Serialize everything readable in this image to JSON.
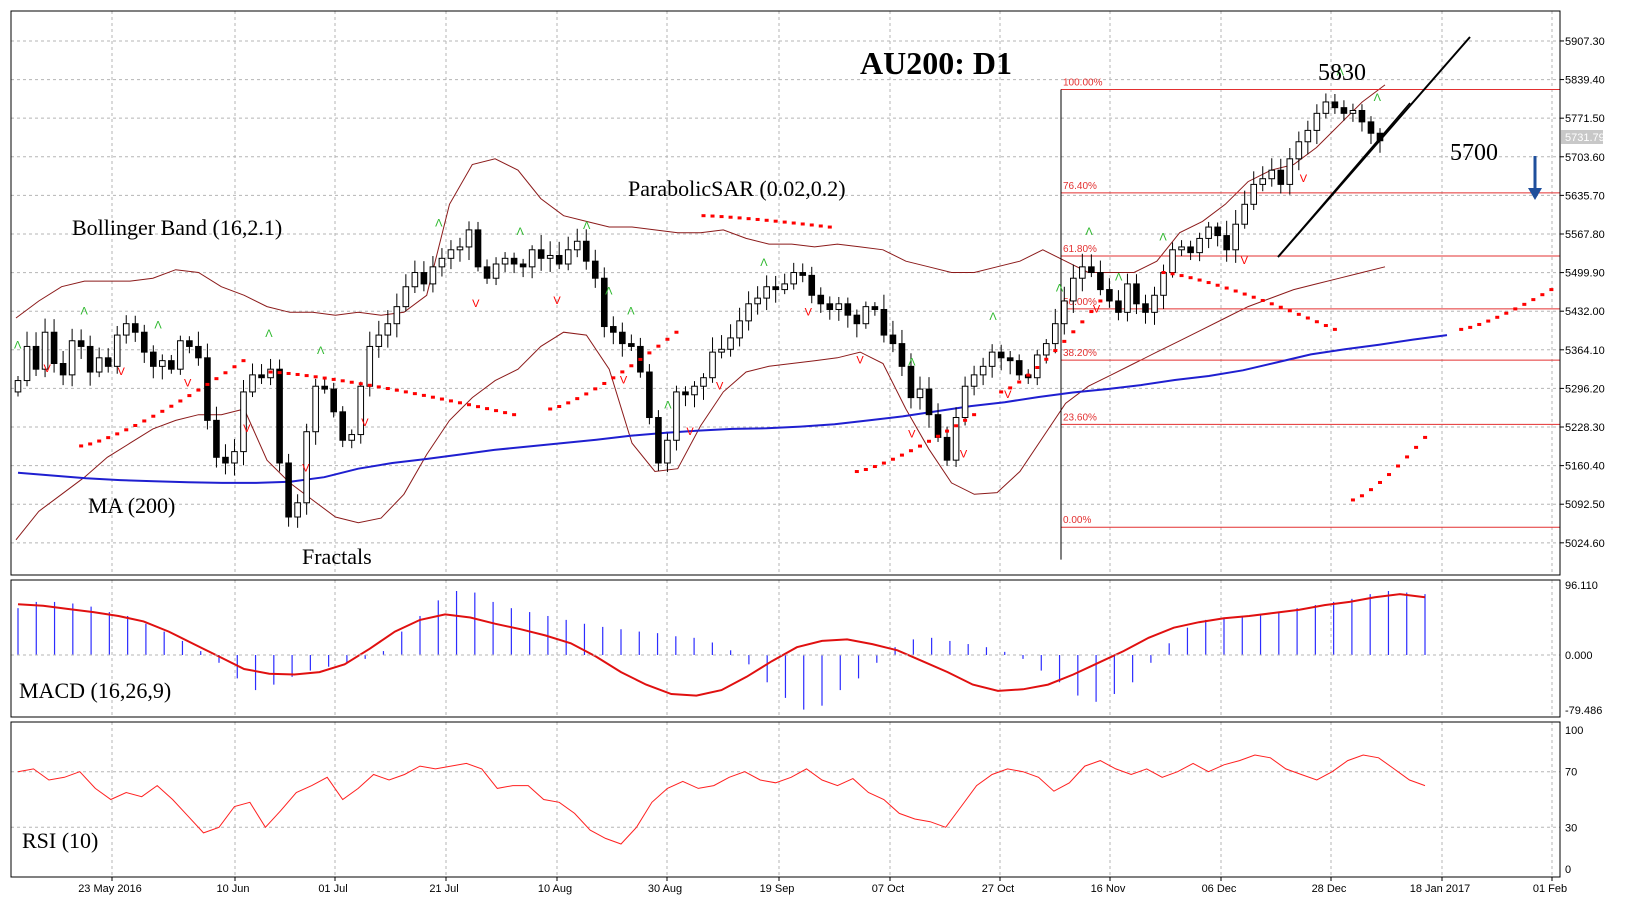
{
  "colors": {
    "background": "#ffffff",
    "grid": "#b5b5b5",
    "frame": "#000000",
    "bollinger": "#8b1a1a",
    "ma": "#1f1fd0",
    "sar": "#ff0000",
    "fractal_up": "#2db82d",
    "fractal_down": "#ff0000",
    "fib": "#e33030",
    "macd_hist": "#2c2cff",
    "macd_signal": "#e01010",
    "rsi": "#ff2020",
    "trend": "#000000",
    "arrow": "#1f4f9c"
  },
  "chart_data": [
    {
      "type": "candlestick",
      "title": "AU200: D1",
      "y_ticks": [
        "5907.30",
        "5839.40",
        "5771.50",
        "5703.60",
        "5635.70",
        "5567.80",
        "5499.90",
        "5432.00",
        "5364.10",
        "5296.20",
        "5228.30",
        "5160.40",
        "5092.50",
        "5024.60"
      ],
      "ylim": [
        4968,
        5960
      ],
      "current_price": "5731.79",
      "x_ticks": [
        "23 May 2016",
        "10 Jun",
        "01 Jul",
        "21 Jul",
        "10 Aug",
        "30 Aug",
        "19 Sep",
        "07 Oct",
        "27 Oct",
        "16 Nov",
        "06 Dec",
        "28 Dec",
        "18 Jan 2017",
        "01 Feb"
      ],
      "indicator_labels": {
        "bollinger": "Bollinger Band (16,2.1)",
        "sar": "ParabolicSAR (0.02,0.2)",
        "ma": "MA (200)",
        "fractals": "Fractals"
      },
      "annotations": {
        "high": "5830",
        "target": "5700"
      },
      "fibonacci": [
        {
          "label": "100.00%",
          "price": 5822
        },
        {
          "label": "76.40%",
          "price": 5640
        },
        {
          "label": "61.80%",
          "price": 5529
        },
        {
          "label": "50.00%",
          "price": 5436
        },
        {
          "label": "38.20%",
          "price": 5346
        },
        {
          "label": "23.60%",
          "price": 5233
        },
        {
          "label": "0.00%",
          "price": 5052
        }
      ],
      "closes": [
        5310,
        5370,
        5330,
        5395,
        5340,
        5320,
        5380,
        5370,
        5325,
        5350,
        5335,
        5390,
        5410,
        5395,
        5360,
        5335,
        5345,
        5330,
        5380,
        5370,
        5350,
        5240,
        5175,
        5165,
        5185,
        5290,
        5320,
        5315,
        5330,
        5165,
        5070,
        5095,
        5220,
        5300,
        5295,
        5255,
        5205,
        5215,
        5300,
        5370,
        5390,
        5410,
        5440,
        5475,
        5500,
        5480,
        5510,
        5525,
        5540,
        5545,
        5575,
        5510,
        5490,
        5515,
        5525,
        5515,
        5510,
        5540,
        5525,
        5530,
        5515,
        5540,
        5555,
        5520,
        5490,
        5405,
        5395,
        5375,
        5370,
        5325,
        5245,
        5165,
        5205,
        5290,
        5285,
        5300,
        5315,
        5360,
        5365,
        5385,
        5415,
        5445,
        5455,
        5475,
        5470,
        5480,
        5500,
        5495,
        5460,
        5445,
        5435,
        5445,
        5425,
        5410,
        5440,
        5435,
        5390,
        5375,
        5335,
        5280,
        5295,
        5250,
        5210,
        5170,
        5245,
        5300,
        5320,
        5335,
        5360,
        5350,
        5345,
        5320,
        5315,
        5355,
        5375,
        5410,
        5450,
        5490,
        5510,
        5500,
        5470,
        5450,
        5430,
        5480,
        5445,
        5430,
        5460,
        5500,
        5540,
        5545,
        5535,
        5560,
        5580,
        5565,
        5540,
        5585,
        5620,
        5655,
        5665,
        5680,
        5655,
        5700,
        5730,
        5750,
        5780,
        5800,
        5790,
        5780,
        5785,
        5765,
        5745,
        5731.79
      ],
      "bollinger_upper": [
        5420,
        5450,
        5475,
        5485,
        5485,
        5485,
        5490,
        5505,
        5500,
        5475,
        5460,
        5440,
        5430,
        5430,
        5425,
        5430,
        5425,
        5430,
        5460,
        5620,
        5690,
        5700,
        5680,
        5630,
        5600,
        5590,
        5580,
        5580,
        5575,
        5570,
        5570,
        5575,
        5560,
        5550,
        5550,
        5545,
        5550,
        5545,
        5540,
        5520,
        5510,
        5500,
        5500,
        5510,
        5520,
        5540,
        5520,
        5500,
        5500,
        5500,
        5520,
        5570,
        5590,
        5620,
        5660,
        5680,
        5690,
        5720,
        5760,
        5800,
        5830
      ],
      "bollinger_lower": [
        5030,
        5080,
        5110,
        5140,
        5175,
        5200,
        5225,
        5240,
        5250,
        5250,
        5260,
        5170,
        5130,
        5100,
        5070,
        5060,
        5068,
        5110,
        5180,
        5240,
        5280,
        5310,
        5330,
        5370,
        5395,
        5390,
        5330,
        5200,
        5150,
        5155,
        5230,
        5290,
        5325,
        5335,
        5340,
        5345,
        5350,
        5360,
        5340,
        5260,
        5190,
        5130,
        5110,
        5113,
        5150,
        5210,
        5270,
        5300,
        5320,
        5340,
        5360,
        5380,
        5400,
        5420,
        5440,
        5455,
        5470,
        5480,
        5490,
        5500,
        5510
      ],
      "ma_200": [
        5148,
        5143,
        5138,
        5135,
        5133,
        5131,
        5130,
        5130,
        5132,
        5140,
        5155,
        5165,
        5172,
        5180,
        5188,
        5194,
        5200,
        5206,
        5213,
        5218,
        5222,
        5225,
        5226,
        5229,
        5233,
        5240,
        5247,
        5256,
        5265,
        5272,
        5281,
        5289,
        5295,
        5302,
        5311,
        5318,
        5328,
        5342,
        5356,
        5365,
        5373,
        5382,
        5390
      ],
      "sar_segments": [
        [
          [
            7,
            5195
          ],
          [
            25,
            5345
          ]
        ],
        [
          [
            28,
            5325
          ],
          [
            55,
            5250
          ]
        ],
        [
          [
            59,
            5260
          ],
          [
            73,
            5395
          ]
        ],
        [
          [
            76,
            5600
          ],
          [
            90,
            5580
          ]
        ],
        [
          [
            93,
            5150
          ],
          [
            106,
            5250
          ]
        ],
        [
          [
            109,
            5290
          ],
          [
            120,
            5450
          ]
        ],
        [
          [
            127,
            5500
          ],
          [
            146,
            5400
          ]
        ],
        [
          [
            148,
            5100
          ],
          [
            156,
            5210
          ]
        ],
        [
          [
            160,
            5400
          ],
          [
            170,
            5470
          ]
        ]
      ],
      "fractals_up": [
        0,
        9,
        19,
        34,
        41,
        57,
        68,
        77,
        80,
        83,
        88,
        101,
        121,
        132,
        141,
        145,
        149,
        155,
        179,
        184
      ],
      "fractals_down": [
        4,
        14,
        23,
        31,
        39,
        47,
        62,
        73,
        82,
        91,
        95,
        107,
        114,
        121,
        128,
        134,
        146,
        166,
        174
      ]
    },
    {
      "type": "bar",
      "title": "MACD (16,26,9)",
      "y_ticks": [
        "96.110",
        "0.000",
        "-79.486"
      ],
      "ylim": [
        -79.486,
        96.11
      ],
      "histogram": [
        60,
        68,
        68,
        66,
        62,
        55,
        50,
        40,
        30,
        18,
        5,
        -10,
        -30,
        -45,
        -38,
        -28,
        -20,
        -15,
        -10,
        -5,
        5,
        30,
        50,
        70,
        82,
        80,
        68,
        60,
        55,
        50,
        45,
        40,
        36,
        33,
        30,
        28,
        24,
        22,
        16,
        6,
        -12,
        -35,
        -55,
        -70,
        -65,
        -45,
        -30,
        -10,
        10,
        20,
        22,
        18,
        14,
        10,
        4,
        -5,
        -20,
        -35,
        -52,
        -60,
        -50,
        -35,
        -10,
        15,
        35,
        45,
        48,
        50,
        52,
        55,
        60,
        64,
        68,
        72,
        78,
        82,
        80,
        78
      ],
      "signal": [
        65,
        63,
        59,
        55,
        50,
        43,
        30,
        14,
        -2,
        -18,
        -24,
        -25,
        -22,
        -12,
        8,
        30,
        45,
        52,
        48,
        40,
        33,
        25,
        15,
        -2,
        -22,
        -38,
        -50,
        -52,
        -45,
        -28,
        -8,
        10,
        18,
        20,
        14,
        6,
        -8,
        -22,
        -38,
        -46,
        -44,
        -38,
        -25,
        -10,
        5,
        22,
        35,
        42,
        47,
        50,
        54,
        58,
        64,
        68,
        74,
        78,
        74
      ]
    },
    {
      "type": "line",
      "title": "RSI (10)",
      "y_ticks": [
        "100",
        "70",
        "30",
        "0"
      ],
      "ylim": [
        0,
        100
      ],
      "values": [
        70,
        72,
        64,
        66,
        70,
        58,
        50,
        55,
        52,
        60,
        50,
        38,
        26,
        30,
        45,
        48,
        30,
        42,
        55,
        60,
        66,
        50,
        58,
        68,
        64,
        68,
        74,
        72,
        74,
        76,
        72,
        58,
        60,
        60,
        50,
        48,
        40,
        28,
        22,
        18,
        30,
        48,
        58,
        63,
        58,
        60,
        66,
        70,
        64,
        62,
        66,
        72,
        64,
        60,
        65,
        55,
        50,
        40,
        36,
        34,
        30,
        45,
        60,
        68,
        72,
        70,
        66,
        56,
        62,
        74,
        78,
        72,
        68,
        72,
        66,
        70,
        76,
        70,
        75,
        78,
        82,
        80,
        72,
        68,
        64,
        70,
        78,
        82,
        80,
        72,
        64,
        60
      ]
    }
  ]
}
